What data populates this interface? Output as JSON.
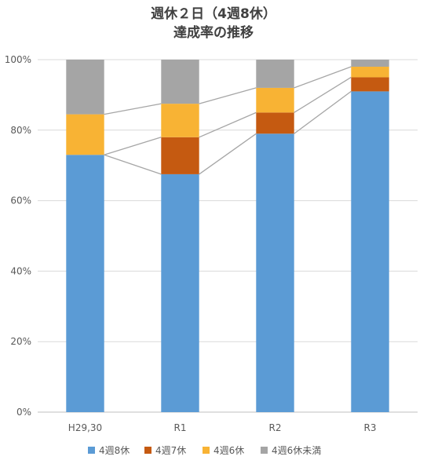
{
  "chart_data": {
    "type": "bar",
    "stacked": true,
    "title_lines": [
      "週休２日（4週8休）",
      "達成率の推移"
    ],
    "categories": [
      "H29,30",
      "R1",
      "R2",
      "R3"
    ],
    "series": [
      {
        "name": "4週8休",
        "color": "#5B9BD5",
        "values": [
          73,
          67.5,
          79,
          91
        ]
      },
      {
        "name": "4週7休",
        "color": "#C55A11",
        "values": [
          0,
          10.5,
          6,
          4
        ]
      },
      {
        "name": "4週6休",
        "color": "#F8B334",
        "values": [
          11.5,
          9.5,
          7,
          3
        ]
      },
      {
        "name": "4週6休未満",
        "color": "#A5A5A5",
        "values": [
          15.5,
          12.5,
          8,
          2
        ]
      }
    ],
    "ylim": [
      0,
      100
    ],
    "yticks": [
      "0%",
      "20%",
      "40%",
      "60%",
      "80%",
      "100%"
    ],
    "ytick_values": [
      0,
      20,
      40,
      60,
      80,
      100
    ],
    "grid": true,
    "series_lines": true,
    "legend_position": "bottom"
  }
}
